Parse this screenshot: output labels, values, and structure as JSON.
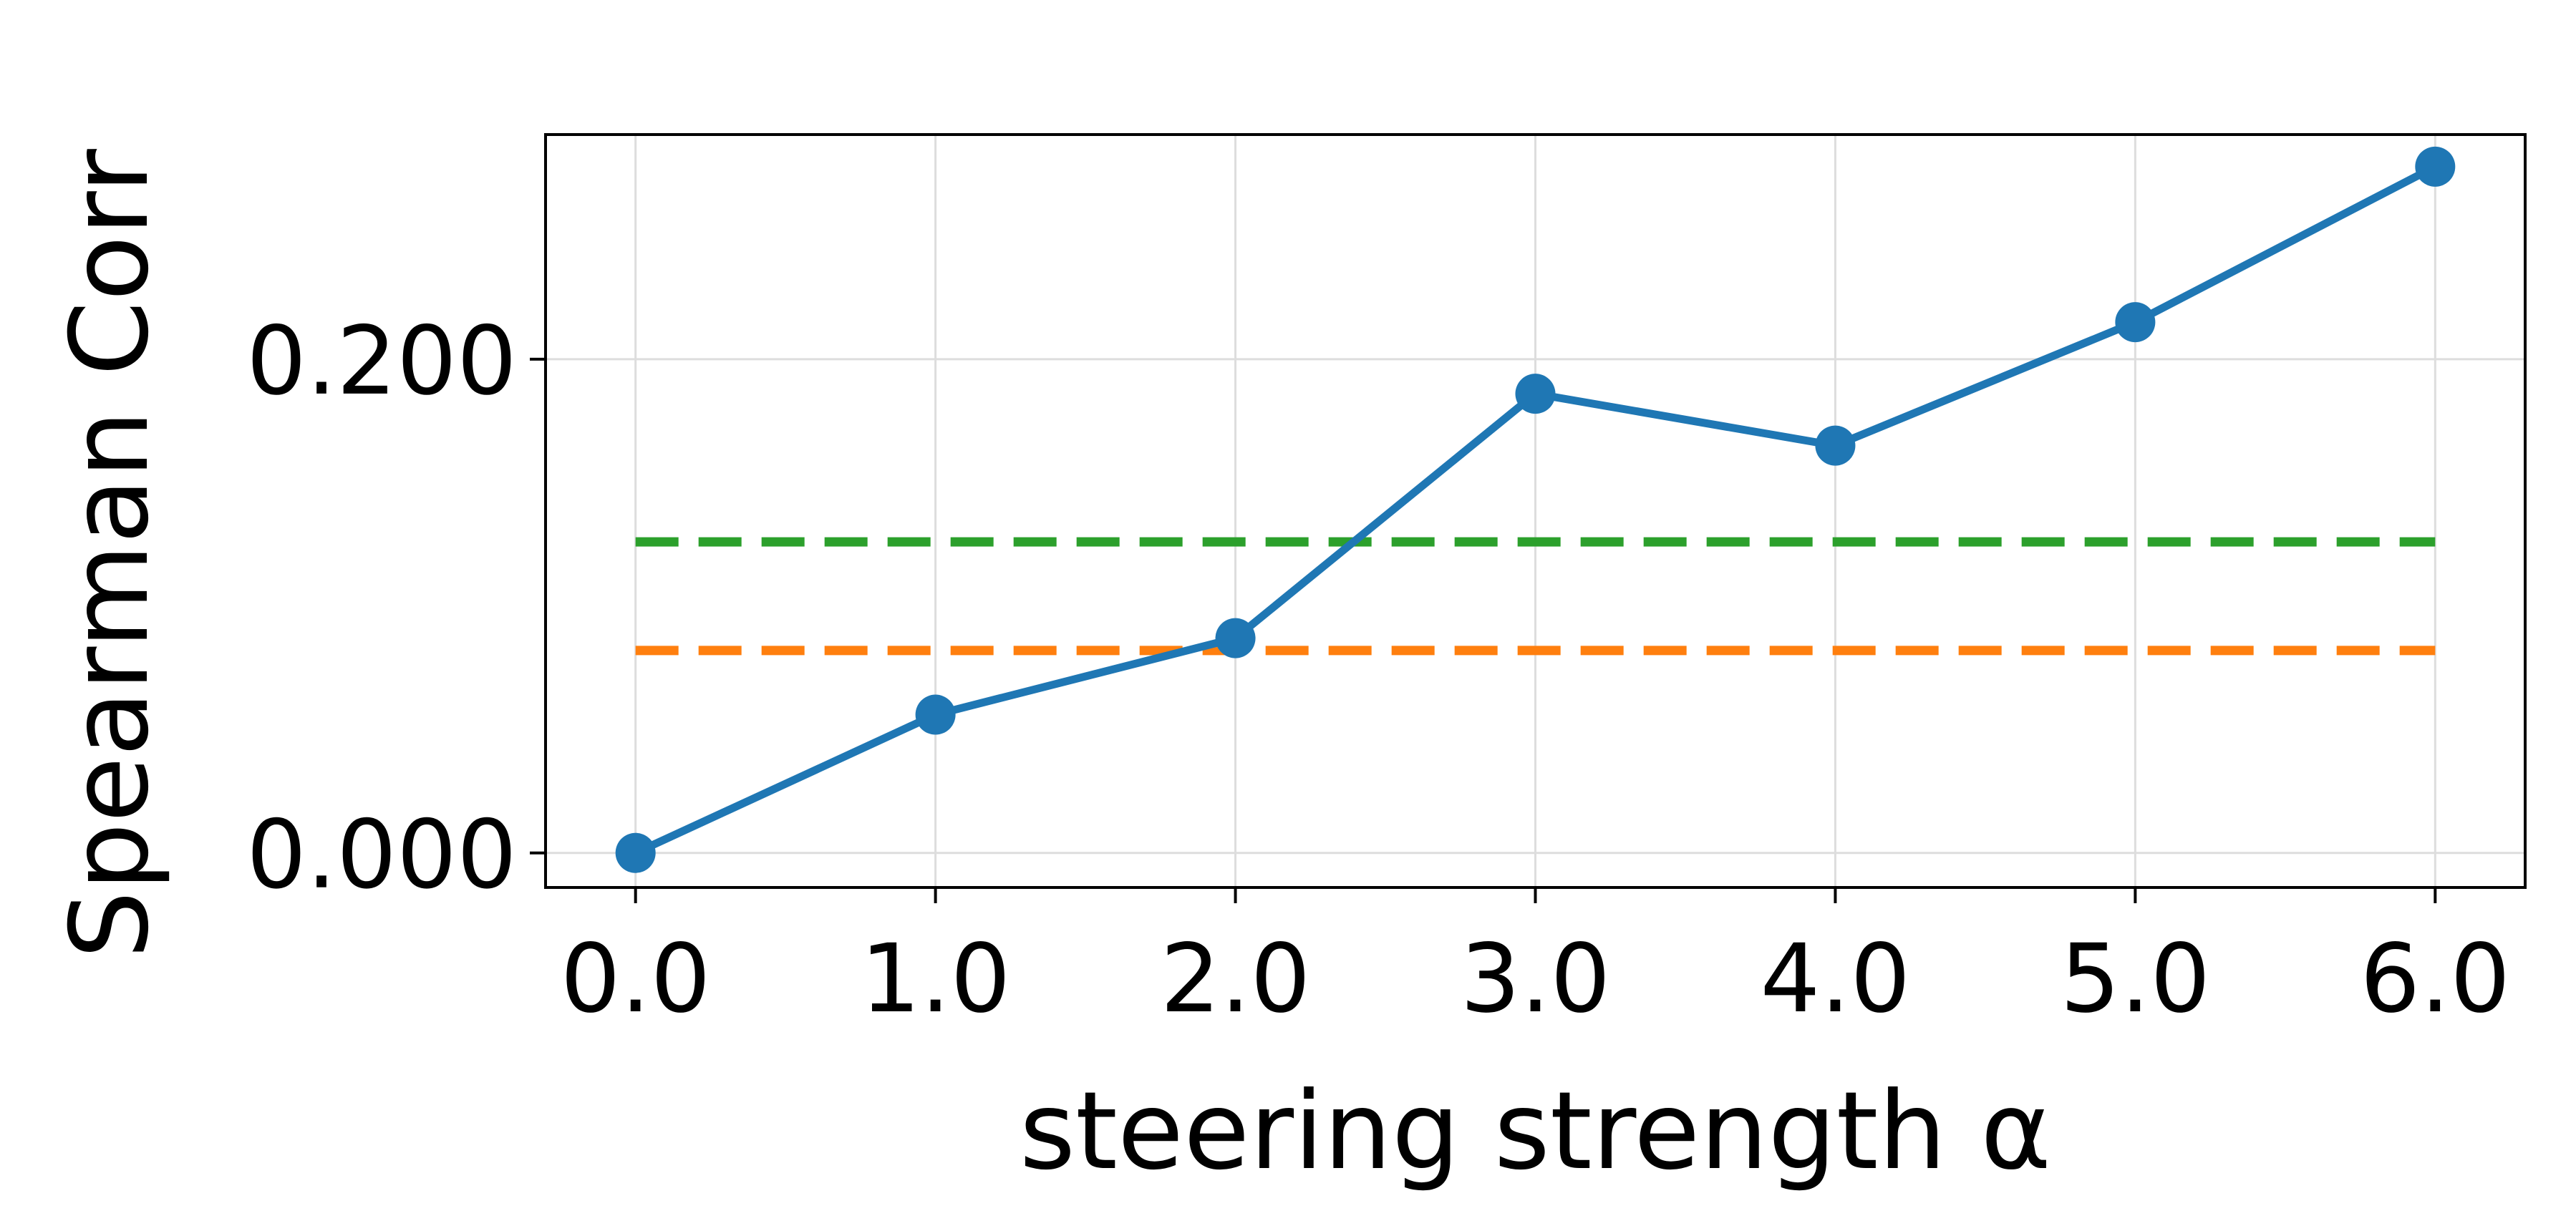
{
  "chart_data": {
    "type": "line",
    "title": "",
    "xlabel": "steering strength α",
    "ylabel": "Spearman Corr",
    "x": [
      0.0,
      1.0,
      2.0,
      3.0,
      4.0,
      5.0,
      6.0
    ],
    "x_tick_labels": [
      "0.0",
      "1.0",
      "2.0",
      "3.0",
      "4.0",
      "5.0",
      "6.0"
    ],
    "y_ticks": [
      0.0,
      0.2
    ],
    "y_tick_labels": [
      "0.000",
      "0.200"
    ],
    "xlim": [
      -0.3,
      6.3
    ],
    "ylim": [
      -0.014,
      0.291
    ],
    "grid": true,
    "series": [
      {
        "values": [
          0.0,
          0.056,
          0.087,
          0.186,
          0.165,
          0.215,
          0.278
        ],
        "color": "#1f77b4",
        "style": "solid",
        "marker": "circle"
      }
    ],
    "reference_lines": [
      {
        "value": 0.126,
        "color": "#2ca02c",
        "style": "dashed",
        "x_range": [
          0.0,
          6.0
        ]
      },
      {
        "value": 0.082,
        "color": "#ff7f0e",
        "style": "dashed",
        "x_range": [
          0.0,
          6.0
        ]
      }
    ]
  }
}
